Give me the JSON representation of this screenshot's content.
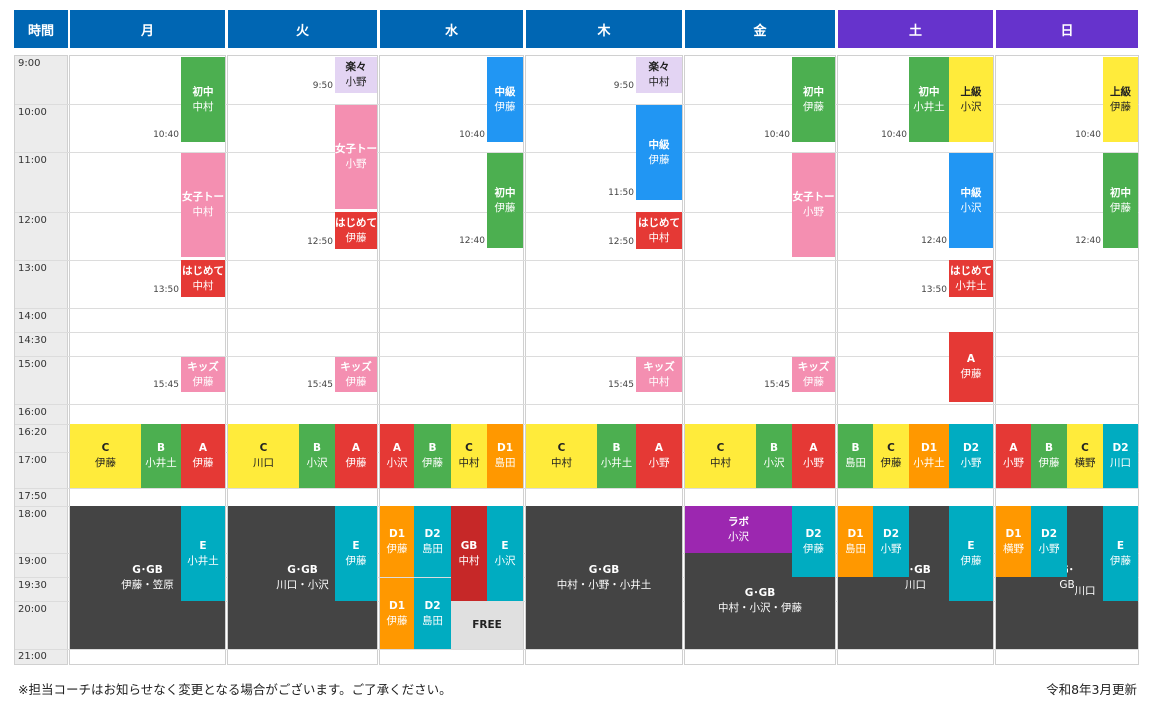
{
  "header": {
    "time_label": "時間",
    "days": [
      "月",
      "火",
      "水",
      "木",
      "金",
      "土",
      "日"
    ]
  },
  "times": [
    "9:00",
    "10:00",
    "11:00",
    "12:00",
    "13:00",
    "14:00",
    "14:30",
    "15:00",
    "16:00",
    "16:20",
    "17:00",
    "17:50",
    "18:00",
    "19:00",
    "19:30",
    "20:00",
    "21:00"
  ],
  "colors": {
    "header_weekday": "#0066b3",
    "header_weekend": "#6633cc",
    "green": "#4caf50",
    "pink": "#f48fb1",
    "red": "#e53935",
    "lavender": "#e3d4f3",
    "blue": "#2196f3",
    "yellow": "#ffeb3b",
    "orange": "#ff9800",
    "teal": "#00acc1",
    "dark": "#444444",
    "purple": "#9c27b0",
    "crimson": "#c62828",
    "gray": "#e0e0e0"
  },
  "blocks": [
    {
      "day": 0,
      "l": 181,
      "w": 44,
      "t": 57,
      "h": 85,
      "c": "green",
      "a": "初中",
      "b": "中村",
      "end": "10:40"
    },
    {
      "day": 0,
      "l": 181,
      "w": 44,
      "t": 153,
      "h": 104,
      "c": "pink",
      "a": "女子トー",
      "b": "中村"
    },
    {
      "day": 0,
      "l": 181,
      "w": 44,
      "t": 260,
      "h": 37,
      "c": "red",
      "a": "はじめて",
      "b": "中村",
      "end": "13:50"
    },
    {
      "day": 0,
      "l": 181,
      "w": 44,
      "t": 357,
      "h": 35,
      "c": "pink",
      "a": "キッズ",
      "b": "伊藤",
      "end": "15:45"
    },
    {
      "day": 0,
      "l": 70,
      "w": 71,
      "t": 424,
      "h": 64,
      "c": "yellow",
      "a": "C",
      "b": "伊藤",
      "dt": true
    },
    {
      "day": 0,
      "l": 141,
      "w": 40,
      "t": 424,
      "h": 64,
      "c": "green",
      "a": "B",
      "b": "小井土"
    },
    {
      "day": 0,
      "l": 181,
      "w": 44,
      "t": 424,
      "h": 64,
      "c": "red",
      "a": "A",
      "b": "伊藤"
    },
    {
      "day": 0,
      "l": 70,
      "w": 155,
      "t": 506,
      "h": 143,
      "c": "dark",
      "a": "G･GB",
      "b": "伊藤・笠原"
    },
    {
      "day": 0,
      "l": 181,
      "w": 44,
      "t": 506,
      "h": 95,
      "c": "teal",
      "a": "E",
      "b": "小井土"
    },
    {
      "day": 1,
      "l": 335,
      "w": 42,
      "t": 57,
      "h": 36,
      "c": "lavender",
      "a": "楽々",
      "b": "小野",
      "end": "9:50",
      "dt": true
    },
    {
      "day": 1,
      "l": 335,
      "w": 42,
      "t": 105,
      "h": 104,
      "c": "pink",
      "a": "女子トー",
      "b": "小野"
    },
    {
      "day": 1,
      "l": 335,
      "w": 42,
      "t": 212,
      "h": 37,
      "c": "red",
      "a": "はじめて",
      "b": "伊藤",
      "end": "12:50"
    },
    {
      "day": 1,
      "l": 335,
      "w": 42,
      "t": 357,
      "h": 35,
      "c": "pink",
      "a": "キッズ",
      "b": "伊藤",
      "end": "15:45"
    },
    {
      "day": 1,
      "l": 228,
      "w": 71,
      "t": 424,
      "h": 64,
      "c": "yellow",
      "a": "C",
      "b": "川口",
      "dt": true
    },
    {
      "day": 1,
      "l": 299,
      "w": 36,
      "t": 424,
      "h": 64,
      "c": "green",
      "a": "B",
      "b": "小沢"
    },
    {
      "day": 1,
      "l": 335,
      "w": 42,
      "t": 424,
      "h": 64,
      "c": "red",
      "a": "A",
      "b": "伊藤"
    },
    {
      "day": 1,
      "l": 228,
      "w": 149,
      "t": 506,
      "h": 143,
      "c": "dark",
      "a": "G･GB",
      "b": "川口・小沢"
    },
    {
      "day": 1,
      "l": 335,
      "w": 42,
      "t": 506,
      "h": 95,
      "c": "teal",
      "a": "E",
      "b": "伊藤"
    },
    {
      "day": 2,
      "l": 487,
      "w": 36,
      "t": 57,
      "h": 85,
      "c": "blue",
      "a": "中級",
      "b": "伊藤",
      "end": "10:40"
    },
    {
      "day": 2,
      "l": 487,
      "w": 36,
      "t": 153,
      "h": 95,
      "c": "green",
      "a": "初中",
      "b": "伊藤",
      "end": "12:40"
    },
    {
      "day": 2,
      "l": 380,
      "w": 34,
      "t": 424,
      "h": 64,
      "c": "red",
      "a": "A",
      "b": "小沢"
    },
    {
      "day": 2,
      "l": 414,
      "w": 37,
      "t": 424,
      "h": 64,
      "c": "green",
      "a": "B",
      "b": "伊藤"
    },
    {
      "day": 2,
      "l": 451,
      "w": 36,
      "t": 424,
      "h": 64,
      "c": "yellow",
      "a": "C",
      "b": "中村",
      "dt": true
    },
    {
      "day": 2,
      "l": 487,
      "w": 36,
      "t": 424,
      "h": 64,
      "c": "orange",
      "a": "D1",
      "b": "島田"
    },
    {
      "day": 2,
      "l": 380,
      "w": 34,
      "t": 506,
      "h": 71,
      "c": "orange",
      "a": "D1",
      "b": "伊藤"
    },
    {
      "day": 2,
      "l": 414,
      "w": 37,
      "t": 506,
      "h": 71,
      "c": "teal",
      "a": "D2",
      "b": "島田"
    },
    {
      "day": 2,
      "l": 451,
      "w": 36,
      "t": 506,
      "h": 95,
      "c": "crimson",
      "a": "GB",
      "b": "中村"
    },
    {
      "day": 2,
      "l": 487,
      "w": 36,
      "t": 506,
      "h": 95,
      "c": "teal",
      "a": "E",
      "b": "小沢"
    },
    {
      "day": 2,
      "l": 380,
      "w": 34,
      "t": 578,
      "h": 71,
      "c": "orange",
      "a": "D1",
      "b": "伊藤"
    },
    {
      "day": 2,
      "l": 414,
      "w": 37,
      "t": 578,
      "h": 71,
      "c": "teal",
      "a": "D2",
      "b": "島田"
    },
    {
      "day": 2,
      "l": 451,
      "w": 72,
      "t": 601,
      "h": 48,
      "c": "gray",
      "a": "FREE",
      "b": "",
      "dt": true
    },
    {
      "day": 3,
      "l": 636,
      "w": 46,
      "t": 57,
      "h": 36,
      "c": "lavender",
      "a": "楽々",
      "b": "中村",
      "end": "9:50",
      "dt": true
    },
    {
      "day": 3,
      "l": 636,
      "w": 46,
      "t": 105,
      "h": 95,
      "c": "blue",
      "a": "中級",
      "b": "伊藤",
      "end": "11:50"
    },
    {
      "day": 3,
      "l": 636,
      "w": 46,
      "t": 212,
      "h": 37,
      "c": "red",
      "a": "はじめて",
      "b": "中村",
      "end": "12:50"
    },
    {
      "day": 3,
      "l": 636,
      "w": 46,
      "t": 357,
      "h": 35,
      "c": "pink",
      "a": "キッズ",
      "b": "中村",
      "end": "15:45"
    },
    {
      "day": 3,
      "l": 526,
      "w": 71,
      "t": 424,
      "h": 64,
      "c": "yellow",
      "a": "C",
      "b": "中村",
      "dt": true
    },
    {
      "day": 3,
      "l": 597,
      "w": 39,
      "t": 424,
      "h": 64,
      "c": "green",
      "a": "B",
      "b": "小井土"
    },
    {
      "day": 3,
      "l": 636,
      "w": 46,
      "t": 424,
      "h": 64,
      "c": "red",
      "a": "A",
      "b": "小野"
    },
    {
      "day": 3,
      "l": 526,
      "w": 156,
      "t": 506,
      "h": 143,
      "c": "dark",
      "a": "G･GB",
      "b": "中村・小野・小井土"
    },
    {
      "day": 4,
      "l": 792,
      "w": 43,
      "t": 57,
      "h": 85,
      "c": "green",
      "a": "初中",
      "b": "伊藤",
      "end": "10:40"
    },
    {
      "day": 4,
      "l": 792,
      "w": 43,
      "t": 153,
      "h": 104,
      "c": "pink",
      "a": "女子トー",
      "b": "小野"
    },
    {
      "day": 4,
      "l": 792,
      "w": 43,
      "t": 357,
      "h": 35,
      "c": "pink",
      "a": "キッズ",
      "b": "伊藤",
      "end": "15:45"
    },
    {
      "day": 4,
      "l": 685,
      "w": 71,
      "t": 424,
      "h": 64,
      "c": "yellow",
      "a": "C",
      "b": "中村",
      "dt": true
    },
    {
      "day": 4,
      "l": 756,
      "w": 36,
      "t": 424,
      "h": 64,
      "c": "green",
      "a": "B",
      "b": "小沢"
    },
    {
      "day": 4,
      "l": 792,
      "w": 43,
      "t": 424,
      "h": 64,
      "c": "red",
      "a": "A",
      "b": "小野"
    },
    {
      "day": 4,
      "l": 685,
      "w": 107,
      "t": 506,
      "h": 47,
      "c": "purple",
      "a": "ラボ",
      "b": "小沢"
    },
    {
      "day": 4,
      "l": 685,
      "w": 150,
      "t": 553,
      "h": 96,
      "c": "dark",
      "a": "G･GB",
      "b": "中村・小沢・伊藤"
    },
    {
      "day": 4,
      "l": 792,
      "w": 43,
      "t": 506,
      "h": 71,
      "c": "teal",
      "a": "D2",
      "b": "伊藤"
    },
    {
      "day": 5,
      "l": 909,
      "w": 40,
      "t": 57,
      "h": 85,
      "c": "green",
      "a": "初中",
      "b": "小井土",
      "end": "10:40"
    },
    {
      "day": 5,
      "l": 949,
      "w": 44,
      "t": 57,
      "h": 85,
      "c": "yellow",
      "a": "上級",
      "b": "小沢",
      "dt": true
    },
    {
      "day": 5,
      "l": 949,
      "w": 44,
      "t": 153,
      "h": 95,
      "c": "blue",
      "a": "中級",
      "b": "小沢",
      "end": "12:40"
    },
    {
      "day": 5,
      "l": 949,
      "w": 44,
      "t": 260,
      "h": 37,
      "c": "red",
      "a": "はじめて",
      "b": "小井土",
      "end": "13:50"
    },
    {
      "day": 5,
      "l": 949,
      "w": 44,
      "t": 332,
      "h": 70,
      "c": "red",
      "a": "A",
      "b": "伊藤"
    },
    {
      "day": 5,
      "l": 838,
      "w": 35,
      "t": 424,
      "h": 64,
      "c": "green",
      "a": "B",
      "b": "島田"
    },
    {
      "day": 5,
      "l": 873,
      "w": 36,
      "t": 424,
      "h": 64,
      "c": "yellow",
      "a": "C",
      "b": "伊藤",
      "dt": true
    },
    {
      "day": 5,
      "l": 909,
      "w": 40,
      "t": 424,
      "h": 64,
      "c": "orange",
      "a": "D1",
      "b": "小井土"
    },
    {
      "day": 5,
      "l": 949,
      "w": 44,
      "t": 424,
      "h": 64,
      "c": "teal",
      "a": "D2",
      "b": "小野"
    },
    {
      "day": 5,
      "l": 838,
      "w": 155,
      "t": 506,
      "h": 143,
      "c": "dark",
      "a": "G･GB",
      "b": "川口"
    },
    {
      "day": 5,
      "l": 838,
      "w": 35,
      "t": 506,
      "h": 71,
      "c": "orange",
      "a": "D1",
      "b": "島田"
    },
    {
      "day": 5,
      "l": 873,
      "w": 36,
      "t": 506,
      "h": 71,
      "c": "teal",
      "a": "D2",
      "b": "小野"
    },
    {
      "day": 5,
      "l": 949,
      "w": 44,
      "t": 506,
      "h": 95,
      "c": "teal",
      "a": "E",
      "b": "伊藤"
    },
    {
      "day": 6,
      "l": 1103,
      "w": 35,
      "t": 57,
      "h": 85,
      "c": "yellow",
      "a": "上級",
      "b": "伊藤",
      "end": "10:40",
      "dt": true
    },
    {
      "day": 6,
      "l": 1103,
      "w": 35,
      "t": 153,
      "h": 95,
      "c": "green",
      "a": "初中",
      "b": "伊藤",
      "end": "12:40"
    },
    {
      "day": 6,
      "l": 996,
      "w": 35,
      "t": 424,
      "h": 64,
      "c": "red",
      "a": "A",
      "b": "小野"
    },
    {
      "day": 6,
      "l": 1031,
      "w": 36,
      "t": 424,
      "h": 64,
      "c": "green",
      "a": "B",
      "b": "伊藤"
    },
    {
      "day": 6,
      "l": 1067,
      "w": 36,
      "t": 424,
      "h": 64,
      "c": "yellow",
      "a": "C",
      "b": "横野",
      "dt": true
    },
    {
      "day": 6,
      "l": 1103,
      "w": 35,
      "t": 424,
      "h": 64,
      "c": "teal",
      "a": "D2",
      "b": "川口"
    },
    {
      "day": 6,
      "l": 996,
      "w": 142,
      "t": 506,
      "h": 143,
      "c": "dark",
      "a": "G･",
      "b": "GB"
    },
    {
      "day": 6,
      "l": 996,
      "w": 35,
      "t": 506,
      "h": 71,
      "c": "orange",
      "a": "D1",
      "b": "横野"
    },
    {
      "day": 6,
      "l": 1031,
      "w": 36,
      "t": 506,
      "h": 71,
      "c": "teal",
      "a": "D2",
      "b": "小野"
    },
    {
      "day": 6,
      "l": 1103,
      "w": 35,
      "t": 506,
      "h": 95,
      "c": "teal",
      "a": "E",
      "b": "伊藤"
    }
  ],
  "extra_text": {
    "sun_ggb_coach": "川口"
  },
  "footer": {
    "note": "※担当コーチはお知らせなく変更となる場合がございます。ご了承ください。",
    "updated": "令和8年3月更新"
  }
}
